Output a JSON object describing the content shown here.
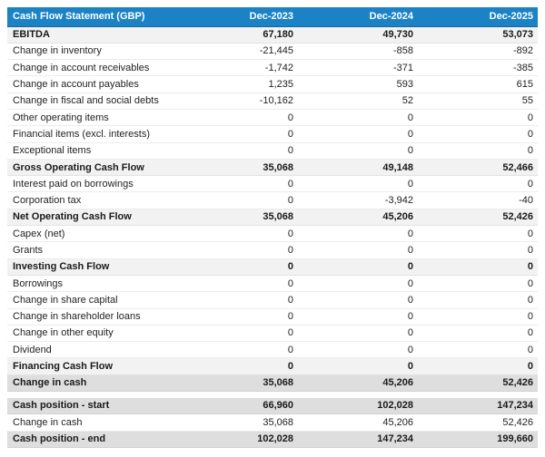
{
  "table": {
    "title": "Cash Flow Statement (GBP)",
    "columns": [
      "Dec-2023",
      "Dec-2024",
      "Dec-2025"
    ],
    "rows": [
      {
        "label": "EBITDA",
        "values": [
          "67,180",
          "49,730",
          "53,073"
        ],
        "style": "subtotal"
      },
      {
        "label": "Change in inventory",
        "values": [
          "-21,445",
          "-858",
          "-892"
        ],
        "style": "normal"
      },
      {
        "label": "Change in account receivables",
        "values": [
          "-1,742",
          "-371",
          "-385"
        ],
        "style": "normal"
      },
      {
        "label": "Change in account payables",
        "values": [
          "1,235",
          "593",
          "615"
        ],
        "style": "normal"
      },
      {
        "label": "Change in fiscal and social debts",
        "values": [
          "-10,162",
          "52",
          "55"
        ],
        "style": "normal"
      },
      {
        "label": "Other operating items",
        "values": [
          "0",
          "0",
          "0"
        ],
        "style": "normal"
      },
      {
        "label": "Financial items (excl. interests)",
        "values": [
          "0",
          "0",
          "0"
        ],
        "style": "normal"
      },
      {
        "label": "Exceptional items",
        "values": [
          "0",
          "0",
          "0"
        ],
        "style": "normal"
      },
      {
        "label": "Gross Operating Cash Flow",
        "values": [
          "35,068",
          "49,148",
          "52,466"
        ],
        "style": "subtotal"
      },
      {
        "label": "Interest paid on borrowings",
        "values": [
          "0",
          "0",
          "0"
        ],
        "style": "normal"
      },
      {
        "label": "Corporation tax",
        "values": [
          "0",
          "-3,942",
          "-40"
        ],
        "style": "normal"
      },
      {
        "label": "Net Operating Cash Flow",
        "values": [
          "35,068",
          "45,206",
          "52,426"
        ],
        "style": "subtotal"
      },
      {
        "label": "Capex (net)",
        "values": [
          "0",
          "0",
          "0"
        ],
        "style": "normal"
      },
      {
        "label": "Grants",
        "values": [
          "0",
          "0",
          "0"
        ],
        "style": "normal"
      },
      {
        "label": "Investing Cash Flow",
        "values": [
          "0",
          "0",
          "0"
        ],
        "style": "subtotal"
      },
      {
        "label": "Borrowings",
        "values": [
          "0",
          "0",
          "0"
        ],
        "style": "normal"
      },
      {
        "label": "Change in share capital",
        "values": [
          "0",
          "0",
          "0"
        ],
        "style": "normal"
      },
      {
        "label": "Change in shareholder loans",
        "values": [
          "0",
          "0",
          "0"
        ],
        "style": "normal"
      },
      {
        "label": "Change in other equity",
        "values": [
          "0",
          "0",
          "0"
        ],
        "style": "normal"
      },
      {
        "label": "Dividend",
        "values": [
          "0",
          "0",
          "0"
        ],
        "style": "normal"
      },
      {
        "label": "Financing Cash Flow",
        "values": [
          "0",
          "0",
          "0"
        ],
        "style": "subtotal"
      },
      {
        "label": "Change in cash",
        "values": [
          "35,068",
          "45,206",
          "52,426"
        ],
        "style": "total"
      },
      {
        "label": "",
        "values": [
          "",
          "",
          ""
        ],
        "style": "spacer"
      },
      {
        "label": "Cash position - start",
        "values": [
          "66,960",
          "102,028",
          "147,234"
        ],
        "style": "total"
      },
      {
        "label": "Change in cash",
        "values": [
          "35,068",
          "45,206",
          "52,426"
        ],
        "style": "normal"
      },
      {
        "label": "Cash position - end",
        "values": [
          "102,028",
          "147,234",
          "199,660"
        ],
        "style": "total"
      }
    ]
  },
  "colors": {
    "header_bg": "#1b83c5",
    "header_text": "#ffffff",
    "subtotal_row_bg": "#f2f2f2",
    "total_row_bg": "#dedede",
    "row_border": "#ececec",
    "body_text": "#222222"
  }
}
